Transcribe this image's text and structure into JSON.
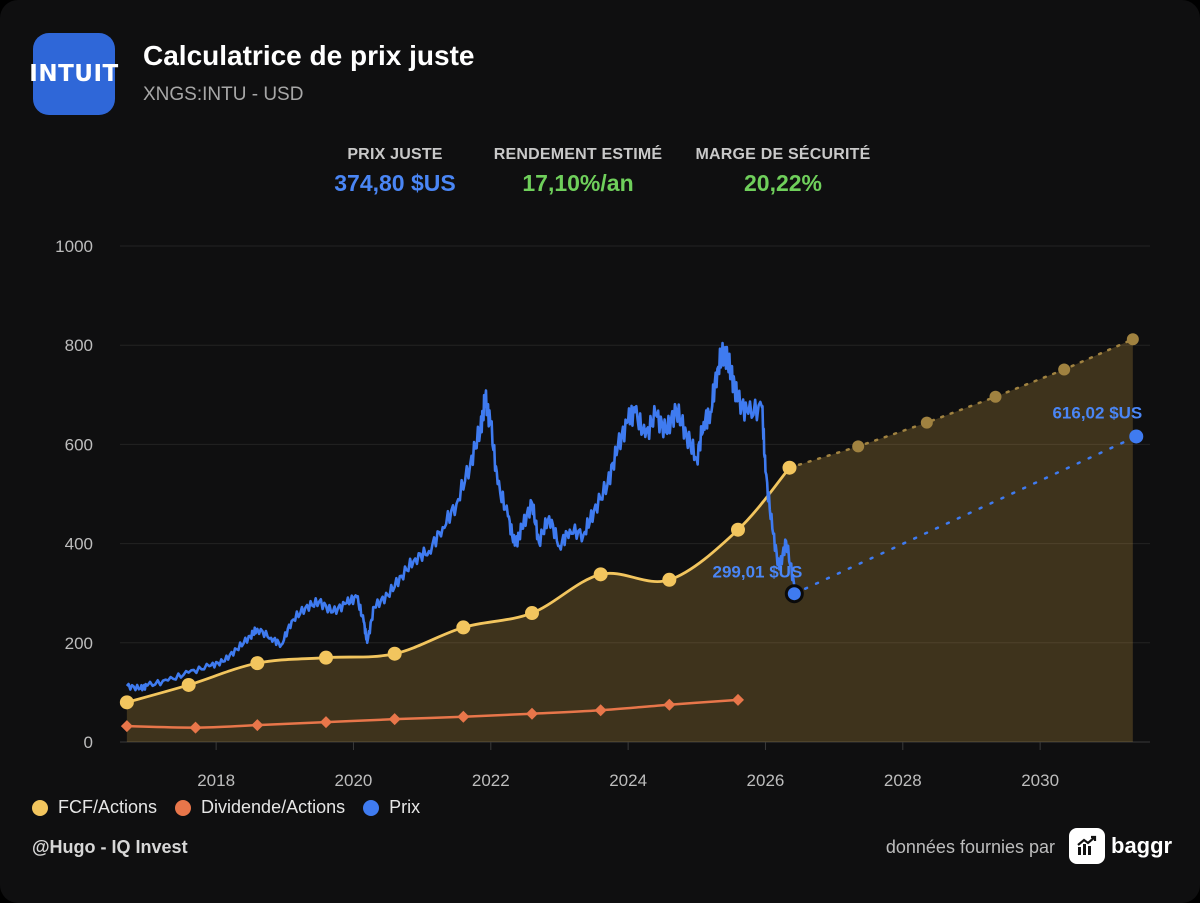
{
  "header": {
    "logo_text": "INTUIT",
    "title": "Calculatrice de prix juste",
    "subtitle": "XNGS:INTU - USD"
  },
  "metrics": [
    {
      "label": "PRIX JUSTE",
      "value": "374,80 $US",
      "color": "#4a86f5"
    },
    {
      "label": "RENDEMENT ESTIMÉ",
      "value": "17,10%/an",
      "color": "#6fcf5b"
    },
    {
      "label": "MARGE DE SÉCURITÉ",
      "value": "20,22%",
      "color": "#6fcf5b"
    }
  ],
  "legend": [
    {
      "label": "FCF/Actions",
      "color": "#f2c55e"
    },
    {
      "label": "Dividende/Actions",
      "color": "#e8764a"
    },
    {
      "label": "Prix",
      "color": "#3f7bf0"
    }
  ],
  "footer": {
    "author": "@Hugo - IQ Invest",
    "source_label": "données fournies par",
    "brand": "baggr"
  },
  "chart_data": {
    "type": "line",
    "xlim": [
      2016.6,
      2031.6
    ],
    "ylim": [
      0,
      1000
    ],
    "x_ticks": [
      "2018",
      "2020",
      "2022",
      "2024",
      "2026",
      "2028",
      "2030"
    ],
    "x_tick_values": [
      2018,
      2020,
      2022,
      2024,
      2026,
      2028,
      2030
    ],
    "y_ticks": [
      "0",
      "200",
      "400",
      "600",
      "800",
      "1000"
    ],
    "y_tick_values": [
      0,
      200,
      400,
      600,
      800,
      1000
    ],
    "grid": true,
    "legend_position": "bottom-left",
    "series": [
      {
        "name": "FCF/Actions",
        "color": "#f2c55e",
        "points": [
          [
            2016.7,
            80
          ],
          [
            2017.6,
            115
          ],
          [
            2018.6,
            159
          ],
          [
            2019.6,
            170
          ],
          [
            2020.6,
            178
          ],
          [
            2021.6,
            231
          ],
          [
            2022.6,
            260
          ],
          [
            2023.6,
            338
          ],
          [
            2024.6,
            327
          ],
          [
            2025.6,
            428
          ],
          [
            2026.35,
            553
          ]
        ]
      },
      {
        "name": "FCF/Actions projection",
        "color": "#a08240",
        "points": [
          [
            2026.35,
            553
          ],
          [
            2027.35,
            596
          ],
          [
            2028.35,
            644
          ],
          [
            2029.35,
            696
          ],
          [
            2030.35,
            751
          ],
          [
            2031.35,
            812
          ]
        ]
      },
      {
        "name": "Dividende/Actions",
        "color": "#e8764a",
        "points": [
          [
            2016.7,
            32
          ],
          [
            2017.7,
            29
          ],
          [
            2018.6,
            34
          ],
          [
            2019.6,
            40
          ],
          [
            2020.6,
            46
          ],
          [
            2021.6,
            51
          ],
          [
            2022.6,
            57
          ],
          [
            2023.6,
            64
          ],
          [
            2024.6,
            75
          ],
          [
            2025.6,
            85
          ]
        ]
      },
      {
        "name": "Prix",
        "color": "#3f7bf0",
        "points": [
          [
            2016.7,
            113
          ],
          [
            2016.9,
            108
          ],
          [
            2017.0,
            114
          ],
          [
            2017.3,
            124
          ],
          [
            2017.6,
            140
          ],
          [
            2017.9,
            153
          ],
          [
            2018.1,
            162
          ],
          [
            2018.3,
            187
          ],
          [
            2018.5,
            214
          ],
          [
            2018.6,
            228
          ],
          [
            2018.8,
            210
          ],
          [
            2018.95,
            196
          ],
          [
            2019.1,
            244
          ],
          [
            2019.3,
            271
          ],
          [
            2019.5,
            283
          ],
          [
            2019.7,
            262
          ],
          [
            2019.9,
            280
          ],
          [
            2020.05,
            292
          ],
          [
            2020.15,
            242
          ],
          [
            2020.2,
            200
          ],
          [
            2020.3,
            272
          ],
          [
            2020.5,
            296
          ],
          [
            2020.7,
            335
          ],
          [
            2020.9,
            370
          ],
          [
            2021.1,
            385
          ],
          [
            2021.3,
            433
          ],
          [
            2021.5,
            480
          ],
          [
            2021.7,
            560
          ],
          [
            2021.85,
            632
          ],
          [
            2021.92,
            692
          ],
          [
            2022.0,
            640
          ],
          [
            2022.1,
            520
          ],
          [
            2022.25,
            455
          ],
          [
            2022.35,
            396
          ],
          [
            2022.45,
            430
          ],
          [
            2022.6,
            482
          ],
          [
            2022.7,
            403
          ],
          [
            2022.85,
            455
          ],
          [
            2023.0,
            395
          ],
          [
            2023.15,
            428
          ],
          [
            2023.35,
            418
          ],
          [
            2023.5,
            465
          ],
          [
            2023.7,
            520
          ],
          [
            2023.85,
            595
          ],
          [
            2024.0,
            648
          ],
          [
            2024.1,
            665
          ],
          [
            2024.25,
            615
          ],
          [
            2024.4,
            660
          ],
          [
            2024.55,
            625
          ],
          [
            2024.7,
            670
          ],
          [
            2024.85,
            620
          ],
          [
            2025.0,
            570
          ],
          [
            2025.1,
            645
          ],
          [
            2025.2,
            665
          ],
          [
            2025.3,
            752
          ],
          [
            2025.4,
            790
          ],
          [
            2025.5,
            745
          ],
          [
            2025.6,
            688
          ],
          [
            2025.75,
            662
          ],
          [
            2025.95,
            675
          ],
          [
            2026.0,
            545
          ],
          [
            2026.1,
            430
          ],
          [
            2026.2,
            348
          ],
          [
            2026.3,
            405
          ],
          [
            2026.42,
            315
          ]
        ]
      },
      {
        "name": "Prix projection",
        "color": "#3f7bf0",
        "points": [
          [
            2026.42,
            299
          ],
          [
            2031.4,
            616
          ]
        ]
      }
    ],
    "annotations": [
      {
        "text": "299,01 $US",
        "x": 2026.42,
        "y": 299
      },
      {
        "text": "616,02 $US",
        "x": 2031.4,
        "y": 616
      }
    ]
  }
}
